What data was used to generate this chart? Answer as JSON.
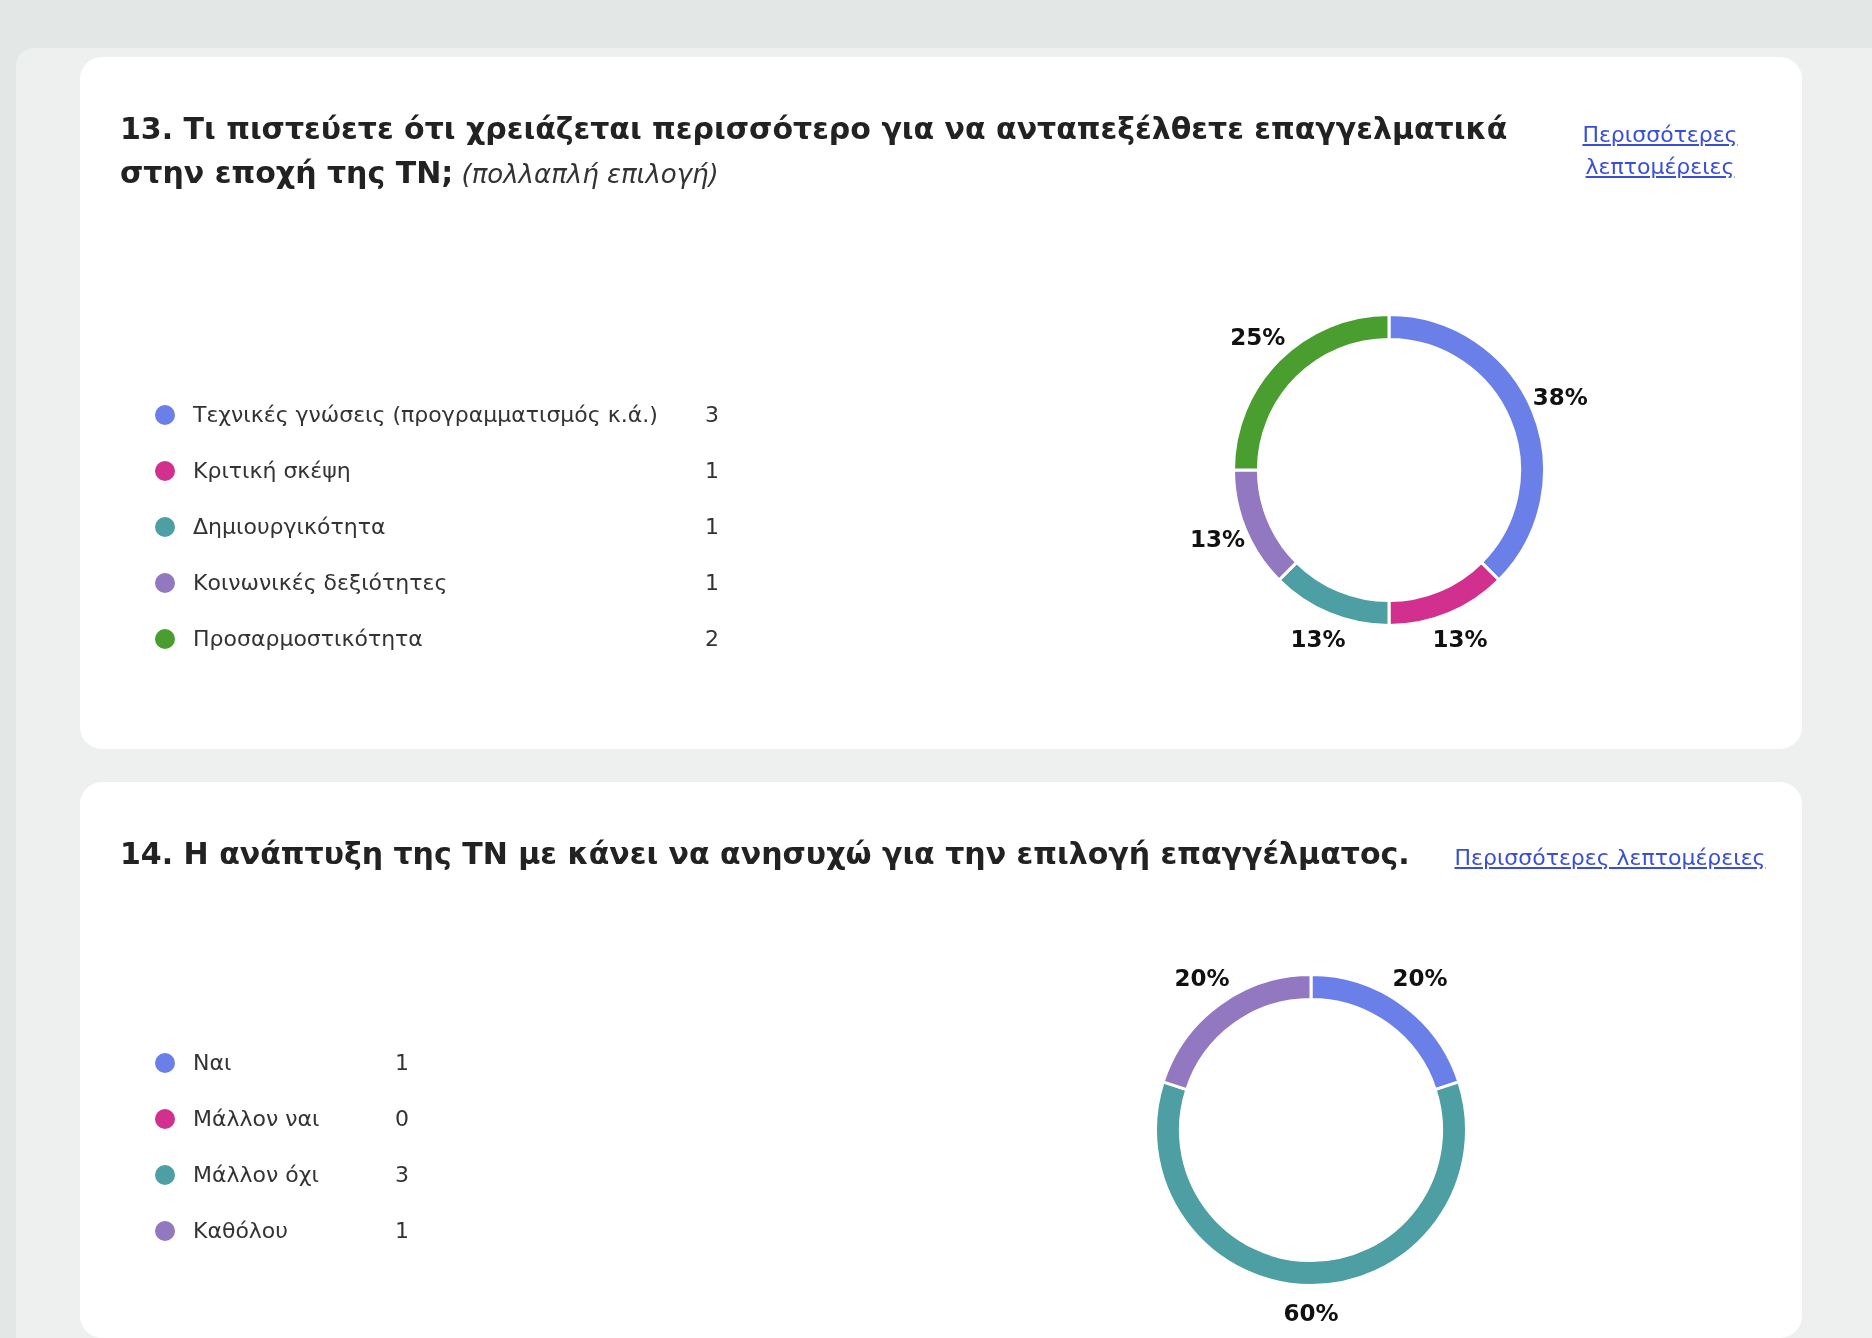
{
  "chart_data": [
    {
      "type": "donut",
      "title": "13. Τι πιστεύετε ότι χρειάζεται περισσότερο για να ανταπεξέλθετε επαγγελματικά στην εποχή της ΤΝ;",
      "subtitle": "(πολλαπλή επιλογή)",
      "legend": "left",
      "data_labels": true,
      "categories": [
        "Τεχνικές γνώσεις (προγραμματισμός κ.ά.)",
        "Κριτική σκέψη",
        "Δημιουργικότητα",
        "Κοινωνικές δεξιότητες",
        "Προσαρμοστικότητα"
      ],
      "values": [
        3,
        1,
        1,
        1,
        2
      ],
      "colors": [
        "#6b7fe8",
        "#d1308f",
        "#4e9fa3",
        "#9178c0",
        "#4a9e2f"
      ],
      "annotations": [
        "Περισσότερες λεπτομέρειες",
        {
          "text": "38%",
          "x": "Τεχνικές γνώσεις (προγραμματισμός κ.ά.)"
        },
        {
          "text": "13%",
          "x": "Κριτική σκέψη"
        },
        {
          "text": "13%",
          "x": "Δημιουργικότητα"
        },
        {
          "text": "13%",
          "x": "Κοινωνικές δεξιότητες"
        },
        {
          "text": "25%",
          "x": "Προσαρμοστικότητα"
        }
      ]
    },
    {
      "type": "donut",
      "title": "14. Η ανάπτυξη της ΤΝ με κάνει να ανησυχώ για την επιλογή επαγγέλματος.",
      "legend": "left",
      "categories": [
        "Ναι",
        "Μάλλον ναι",
        "Μάλλον όχι",
        "Καθόλου"
      ],
      "values": [
        1,
        0,
        3,
        1
      ],
      "value_labels": [
        "1",
        "0",
        "3",
        "1"
      ],
      "colors": [
        "#6b7fe8",
        "#d1308f",
        "#4e9fa3",
        "#9178c0"
      ],
      "annotations": [
        "Περισσότερες λεπτομέρειες",
        {
          "text": "20%",
          "x": "Ναι"
        },
        {
          "text": "60%",
          "x": "Μάλλον όχι"
        },
        {
          "text": "20%",
          "x": "Καθόλου"
        }
      ]
    }
  ]
}
